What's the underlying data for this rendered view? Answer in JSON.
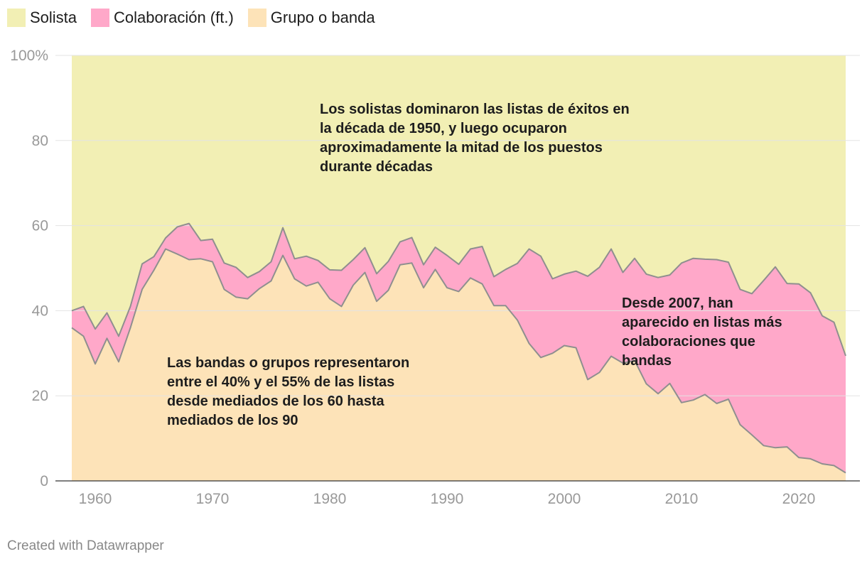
{
  "colors": {
    "solista": "#f2efb4",
    "colaboracion": "#ffa8c9",
    "grupo": "#fde3b8",
    "boundary": "#8f8f8f",
    "gridline": "#e3e3e3",
    "axis_text": "#999999",
    "annotation_text": "#1d1d1d"
  },
  "legend": [
    {
      "label": "Solista",
      "color_key": "solista"
    },
    {
      "label": "Colaboración (ft.)",
      "color_key": "colaboracion"
    },
    {
      "label": "Grupo o banda",
      "color_key": "grupo"
    }
  ],
  "footer": "Created with Datawrapper",
  "chart_data": {
    "type": "area",
    "stacked": true,
    "title": "",
    "xlabel": "",
    "ylabel": "",
    "xlim": [
      1958,
      2024
    ],
    "ylim": [
      0,
      100
    ],
    "grid": true,
    "x_ticks": [
      1960,
      1970,
      1980,
      1990,
      2000,
      2010,
      2020
    ],
    "y_ticks": [
      {
        "value": 0,
        "label": "0"
      },
      {
        "value": 20,
        "label": "20"
      },
      {
        "value": 40,
        "label": "40"
      },
      {
        "value": 60,
        "label": "60"
      },
      {
        "value": 80,
        "label": "80"
      },
      {
        "value": 100,
        "label": "100%"
      }
    ],
    "x": [
      1958,
      1959,
      1960,
      1961,
      1962,
      1963,
      1964,
      1965,
      1966,
      1967,
      1968,
      1969,
      1970,
      1971,
      1972,
      1973,
      1974,
      1975,
      1976,
      1977,
      1978,
      1979,
      1980,
      1981,
      1982,
      1983,
      1984,
      1985,
      1986,
      1987,
      1988,
      1989,
      1990,
      1991,
      1992,
      1993,
      1994,
      1995,
      1996,
      1997,
      1998,
      1999,
      2000,
      2001,
      2002,
      2003,
      2004,
      2005,
      2006,
      2007,
      2008,
      2009,
      2010,
      2011,
      2012,
      2013,
      2014,
      2015,
      2016,
      2017,
      2018,
      2019,
      2020,
      2021,
      2022,
      2023,
      2024
    ],
    "series": [
      {
        "name": "Grupo o banda",
        "color_key": "grupo",
        "values": [
          36,
          34,
          27.5,
          33.5,
          28,
          36,
          45,
          49.5,
          54.5,
          53.3,
          52,
          52.2,
          51.5,
          45,
          43.2,
          42.8,
          45.2,
          47,
          53,
          47.5,
          45.8,
          46.7,
          42.8,
          41,
          46,
          49,
          42.2,
          44.8,
          50.8,
          51.2,
          45.4,
          49.7,
          45.4,
          44.5,
          47.7,
          46.3,
          41.2,
          41.2,
          37.8,
          32.3,
          29,
          30,
          31.8,
          31.3,
          23.8,
          25.5,
          29.3,
          27.7,
          28.3,
          22.8,
          20.5,
          22.9,
          18.4,
          19,
          20.3,
          18.2,
          19.2,
          13.2,
          10.8,
          8.3,
          7.8,
          8,
          5.5,
          5.2,
          4,
          3.6,
          1.9
        ]
      },
      {
        "name": "Colaboración (ft.)",
        "color_key": "colaboracion",
        "values": [
          4,
          7,
          8.2,
          6,
          6,
          5,
          6,
          3.2,
          2.6,
          6.4,
          8.5,
          4.3,
          5.3,
          6.2,
          7,
          5,
          4,
          4.5,
          6.5,
          4.7,
          7,
          5.1,
          6.8,
          8.5,
          6,
          5.8,
          6.5,
          6.8,
          5.4,
          6,
          5.4,
          5.2,
          7.6,
          6.4,
          6.8,
          8.8,
          6.8,
          8.5,
          13.3,
          22.2,
          23.8,
          17.5,
          16.8,
          18,
          24.3,
          24.7,
          25.2,
          21.3,
          24,
          25.8,
          27.3,
          25.5,
          32.8,
          33.3,
          31.8,
          33.8,
          32.2,
          31.8,
          33.2,
          38.8,
          42.5,
          38.4,
          40.8,
          39,
          34.8,
          33.7,
          27.5
        ]
      },
      {
        "name": "Solista",
        "color_key": "solista",
        "values": [
          60,
          59,
          64.3,
          60.5,
          66,
          59,
          49,
          47.3,
          42.9,
          40.3,
          39.5,
          43.5,
          43.2,
          48.8,
          49.8,
          52.2,
          50.8,
          48.5,
          40.5,
          47.8,
          47.2,
          48.2,
          50.4,
          50.5,
          48,
          45.2,
          51.3,
          48.4,
          43.8,
          42.8,
          49.2,
          45.1,
          47,
          49.1,
          45.5,
          44.9,
          52,
          50.3,
          48.9,
          45.5,
          47.2,
          52.5,
          51.4,
          50.7,
          51.9,
          49.8,
          45.5,
          51,
          47.7,
          51.4,
          52.2,
          51.6,
          48.8,
          47.7,
          47.9,
          48,
          48.6,
          55,
          56,
          52.9,
          49.7,
          53.6,
          53.7,
          55.8,
          61.2,
          62.7,
          70.6
        ]
      }
    ],
    "annotations": [
      {
        "id": "solistas",
        "lines": [
          "Los solistas dominaron las listas de éxitos en",
          "la década de 1950, y luego ocuparon",
          "aproximadamente la mitad de los puestos",
          "durante décadas"
        ]
      },
      {
        "id": "bandas",
        "lines": [
          "Las bandas o grupos representaron",
          "entre el 40% y el 55% de las listas",
          "desde mediados de los 60 hasta",
          "mediados de los 90"
        ]
      },
      {
        "id": "colaboraciones",
        "lines": [
          "Desde 2007, han",
          "aparecido en listas más",
          "colaboraciones que",
          "bandas"
        ]
      }
    ]
  }
}
